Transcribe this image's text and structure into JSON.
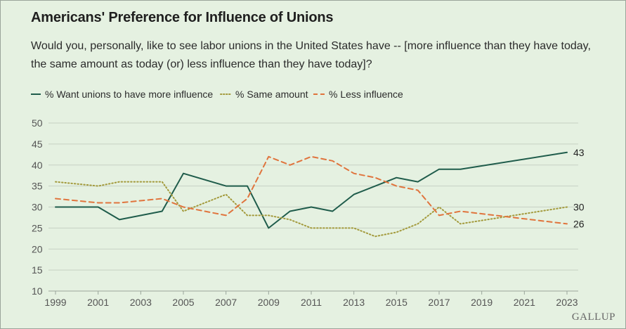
{
  "header": {
    "title": "Americans' Preference for Influence of Unions",
    "subtitle": "Would you, personally, like to see labor unions in the United States have -- [more influence than they have today, the same amount as today (or) less influence than they have today]?"
  },
  "brand": "GALLUP",
  "colors": {
    "more": "#1f5c4b",
    "same": "#a39a3c",
    "less": "#e0743d",
    "grid": "#c6d1c4",
    "background": "#e5f1e1"
  },
  "chart_data": {
    "type": "line",
    "title": "Americans' Preference for Influence of Unions",
    "xlabel": "",
    "ylabel": "",
    "ylim": [
      10,
      50
    ],
    "xlim": [
      1999,
      2023
    ],
    "yticks": [
      "10",
      "15",
      "20",
      "25",
      "30",
      "35",
      "40",
      "45",
      "50"
    ],
    "xticks": [
      "1999",
      "2001",
      "2003",
      "2005",
      "2007",
      "2009",
      "2011",
      "2013",
      "2015",
      "2017",
      "2019",
      "2021",
      "2023"
    ],
    "grid": "horizontal",
    "legend_position": "top",
    "series": [
      {
        "name": "% Want unions to have more influence",
        "style": "solid",
        "points": [
          [
            1999,
            30
          ],
          [
            2001,
            30
          ],
          [
            2002,
            27
          ],
          [
            2004,
            29
          ],
          [
            2005,
            38
          ],
          [
            2007,
            35
          ],
          [
            2008,
            35
          ],
          [
            2009,
            25
          ],
          [
            2010,
            29
          ],
          [
            2011,
            30
          ],
          [
            2012,
            29
          ],
          [
            2013,
            33
          ],
          [
            2015,
            37
          ],
          [
            2016,
            36
          ],
          [
            2017,
            39
          ],
          [
            2018,
            39
          ],
          [
            2023,
            43
          ]
        ],
        "end_label": "43"
      },
      {
        "name": "% Same amount",
        "style": "dotted",
        "points": [
          [
            1999,
            36
          ],
          [
            2001,
            35
          ],
          [
            2002,
            36
          ],
          [
            2004,
            36
          ],
          [
            2005,
            29
          ],
          [
            2007,
            33
          ],
          [
            2008,
            28
          ],
          [
            2009,
            28
          ],
          [
            2010,
            27
          ],
          [
            2011,
            25
          ],
          [
            2013,
            25
          ],
          [
            2014,
            23
          ],
          [
            2015,
            24
          ],
          [
            2016,
            26
          ],
          [
            2017,
            30
          ],
          [
            2018,
            26
          ],
          [
            2023,
            30
          ]
        ],
        "end_label": "30"
      },
      {
        "name": "% Less influence",
        "style": "dashed",
        "points": [
          [
            1999,
            32
          ],
          [
            2001,
            31
          ],
          [
            2002,
            31
          ],
          [
            2004,
            32
          ],
          [
            2005,
            30
          ],
          [
            2007,
            28
          ],
          [
            2008,
            32
          ],
          [
            2009,
            42
          ],
          [
            2010,
            40
          ],
          [
            2011,
            42
          ],
          [
            2012,
            41
          ],
          [
            2013,
            38
          ],
          [
            2014,
            37
          ],
          [
            2015,
            35
          ],
          [
            2016,
            34
          ],
          [
            2017,
            28
          ],
          [
            2018,
            29
          ],
          [
            2023,
            26
          ]
        ],
        "end_label": "26"
      }
    ]
  }
}
